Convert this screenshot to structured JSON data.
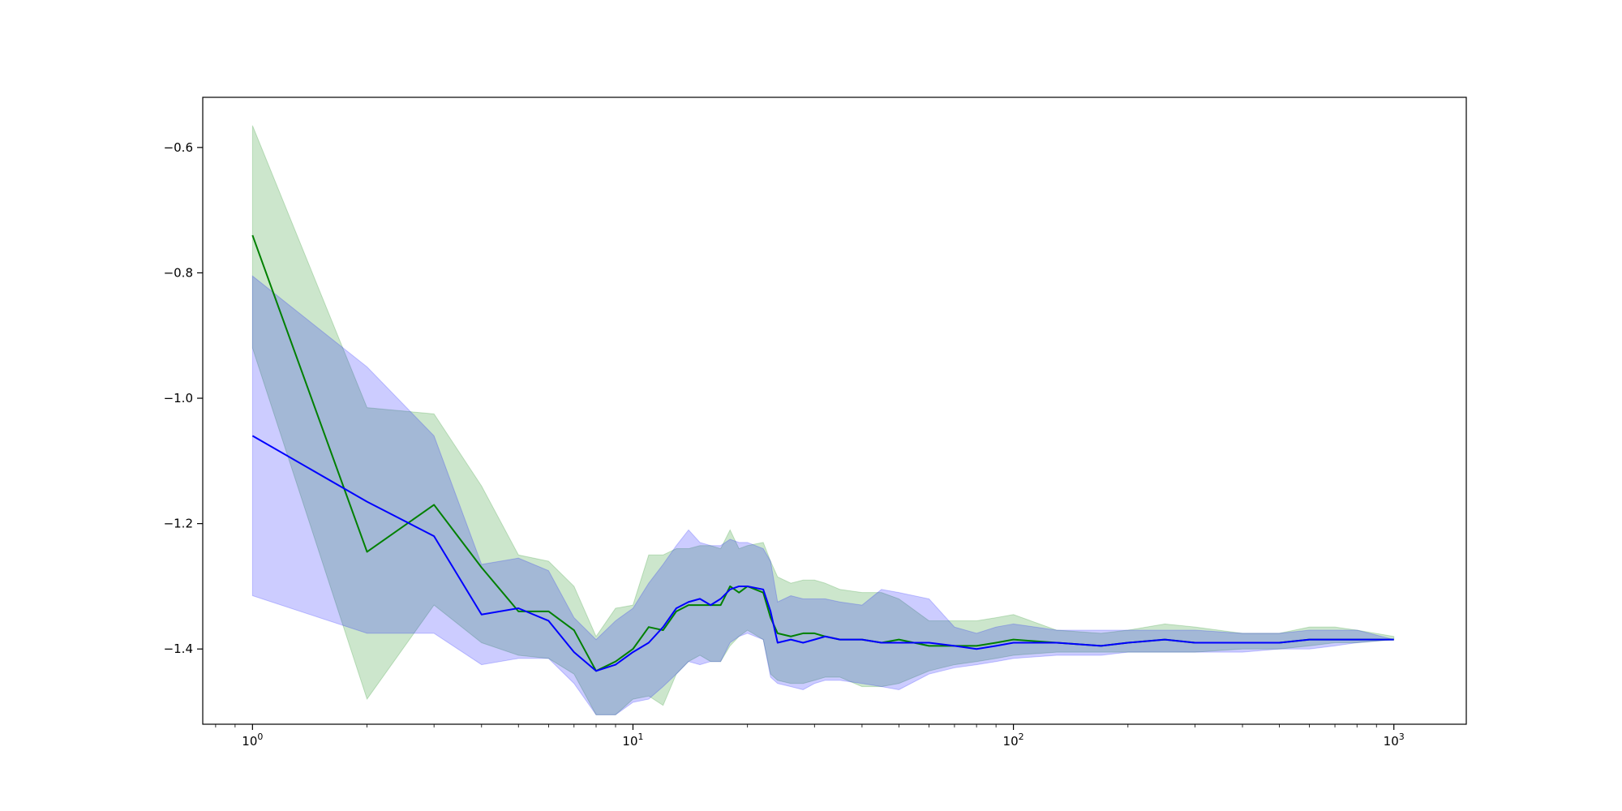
{
  "chart_data": {
    "type": "area",
    "title": "",
    "xlabel": "",
    "ylabel": "",
    "xscale": "log",
    "xlim": [
      0.74,
      1550
    ],
    "ylim": [
      -1.52,
      -0.52
    ],
    "grid": false,
    "legend": "none",
    "x_ticks": [
      {
        "value": 1,
        "base": "10",
        "exp": "0"
      },
      {
        "value": 10,
        "base": "10",
        "exp": "1"
      },
      {
        "value": 100,
        "base": "10",
        "exp": "2"
      },
      {
        "value": 1000,
        "base": "10",
        "exp": "3"
      }
    ],
    "y_ticks": [
      {
        "value": -0.6,
        "label": "−0.6"
      },
      {
        "value": -0.8,
        "label": "−0.8"
      },
      {
        "value": -1.0,
        "label": "−1.0"
      },
      {
        "value": -1.2,
        "label": "−1.2"
      },
      {
        "value": -1.4,
        "label": "−1.4"
      }
    ],
    "series": [
      {
        "color": "#008000",
        "fill_color": "#008000",
        "fill_opacity": 0.2,
        "x": [
          1,
          2,
          3,
          4,
          5,
          6,
          7,
          8,
          9,
          10,
          11,
          12,
          13,
          14,
          15,
          16,
          17,
          18,
          19,
          20,
          22,
          23,
          24,
          26,
          28,
          30,
          32,
          35,
          40,
          45,
          50,
          60,
          70,
          80,
          90,
          100,
          130,
          170,
          200,
          250,
          300,
          400,
          500,
          600,
          700,
          800,
          1000
        ],
        "y": [
          -0.74,
          -1.245,
          -1.17,
          -1.27,
          -1.34,
          -1.34,
          -1.37,
          -1.435,
          -1.42,
          -1.4,
          -1.365,
          -1.37,
          -1.34,
          -1.33,
          -1.33,
          -1.33,
          -1.33,
          -1.3,
          -1.31,
          -1.3,
          -1.31,
          -1.35,
          -1.375,
          -1.38,
          -1.375,
          -1.375,
          -1.38,
          -1.385,
          -1.385,
          -1.39,
          -1.385,
          -1.395,
          -1.395,
          -1.395,
          -1.39,
          -1.385,
          -1.39,
          -1.395,
          -1.39,
          -1.385,
          -1.39,
          -1.39,
          -1.39,
          -1.385,
          -1.385,
          -1.385,
          -1.385
        ],
        "upper": [
          -0.565,
          -1.015,
          -1.025,
          -1.14,
          -1.25,
          -1.26,
          -1.3,
          -1.38,
          -1.335,
          -1.33,
          -1.25,
          -1.25,
          -1.24,
          -1.24,
          -1.235,
          -1.235,
          -1.24,
          -1.21,
          -1.24,
          -1.235,
          -1.23,
          -1.26,
          -1.285,
          -1.295,
          -1.29,
          -1.29,
          -1.295,
          -1.305,
          -1.31,
          -1.31,
          -1.32,
          -1.355,
          -1.355,
          -1.355,
          -1.35,
          -1.345,
          -1.37,
          -1.375,
          -1.37,
          -1.36,
          -1.365,
          -1.375,
          -1.375,
          -1.365,
          -1.365,
          -1.37,
          -1.38
        ],
        "lower": [
          -0.92,
          -1.48,
          -1.33,
          -1.39,
          -1.41,
          -1.415,
          -1.44,
          -1.505,
          -1.505,
          -1.48,
          -1.475,
          -1.49,
          -1.44,
          -1.42,
          -1.41,
          -1.42,
          -1.42,
          -1.395,
          -1.38,
          -1.37,
          -1.385,
          -1.44,
          -1.45,
          -1.455,
          -1.455,
          -1.45,
          -1.445,
          -1.445,
          -1.46,
          -1.46,
          -1.455,
          -1.435,
          -1.425,
          -1.42,
          -1.415,
          -1.41,
          -1.405,
          -1.405,
          -1.405,
          -1.405,
          -1.405,
          -1.4,
          -1.4,
          -1.395,
          -1.39,
          -1.39,
          -1.385
        ]
      },
      {
        "color": "#0000ff",
        "fill_color": "#0000ff",
        "fill_opacity": 0.2,
        "x": [
          1,
          2,
          3,
          4,
          5,
          6,
          7,
          8,
          9,
          10,
          11,
          12,
          13,
          14,
          15,
          16,
          17,
          18,
          19,
          20,
          22,
          23,
          24,
          26,
          28,
          30,
          32,
          35,
          40,
          45,
          50,
          60,
          70,
          80,
          90,
          100,
          130,
          170,
          200,
          250,
          300,
          400,
          500,
          600,
          700,
          800,
          1000
        ],
        "y": [
          -1.06,
          -1.165,
          -1.22,
          -1.345,
          -1.335,
          -1.355,
          -1.405,
          -1.435,
          -1.425,
          -1.405,
          -1.39,
          -1.365,
          -1.335,
          -1.325,
          -1.32,
          -1.33,
          -1.32,
          -1.305,
          -1.3,
          -1.3,
          -1.305,
          -1.34,
          -1.39,
          -1.385,
          -1.39,
          -1.385,
          -1.38,
          -1.385,
          -1.385,
          -1.39,
          -1.39,
          -1.39,
          -1.395,
          -1.4,
          -1.395,
          -1.39,
          -1.39,
          -1.395,
          -1.39,
          -1.385,
          -1.39,
          -1.39,
          -1.39,
          -1.385,
          -1.385,
          -1.385,
          -1.385
        ],
        "upper": [
          -0.805,
          -0.95,
          -1.06,
          -1.265,
          -1.255,
          -1.275,
          -1.35,
          -1.385,
          -1.355,
          -1.335,
          -1.295,
          -1.265,
          -1.235,
          -1.21,
          -1.23,
          -1.235,
          -1.235,
          -1.225,
          -1.23,
          -1.23,
          -1.24,
          -1.26,
          -1.325,
          -1.315,
          -1.32,
          -1.32,
          -1.32,
          -1.325,
          -1.33,
          -1.305,
          -1.31,
          -1.32,
          -1.365,
          -1.375,
          -1.365,
          -1.36,
          -1.37,
          -1.37,
          -1.37,
          -1.37,
          -1.37,
          -1.375,
          -1.375,
          -1.37,
          -1.37,
          -1.37,
          -1.385
        ],
        "lower": [
          -1.315,
          -1.375,
          -1.375,
          -1.425,
          -1.415,
          -1.415,
          -1.455,
          -1.505,
          -1.505,
          -1.485,
          -1.48,
          -1.46,
          -1.44,
          -1.42,
          -1.425,
          -1.42,
          -1.42,
          -1.39,
          -1.38,
          -1.375,
          -1.385,
          -1.445,
          -1.455,
          -1.46,
          -1.465,
          -1.455,
          -1.45,
          -1.45,
          -1.455,
          -1.46,
          -1.465,
          -1.44,
          -1.43,
          -1.425,
          -1.42,
          -1.415,
          -1.41,
          -1.41,
          -1.405,
          -1.405,
          -1.405,
          -1.405,
          -1.4,
          -1.4,
          -1.395,
          -1.39,
          -1.385
        ]
      }
    ]
  }
}
